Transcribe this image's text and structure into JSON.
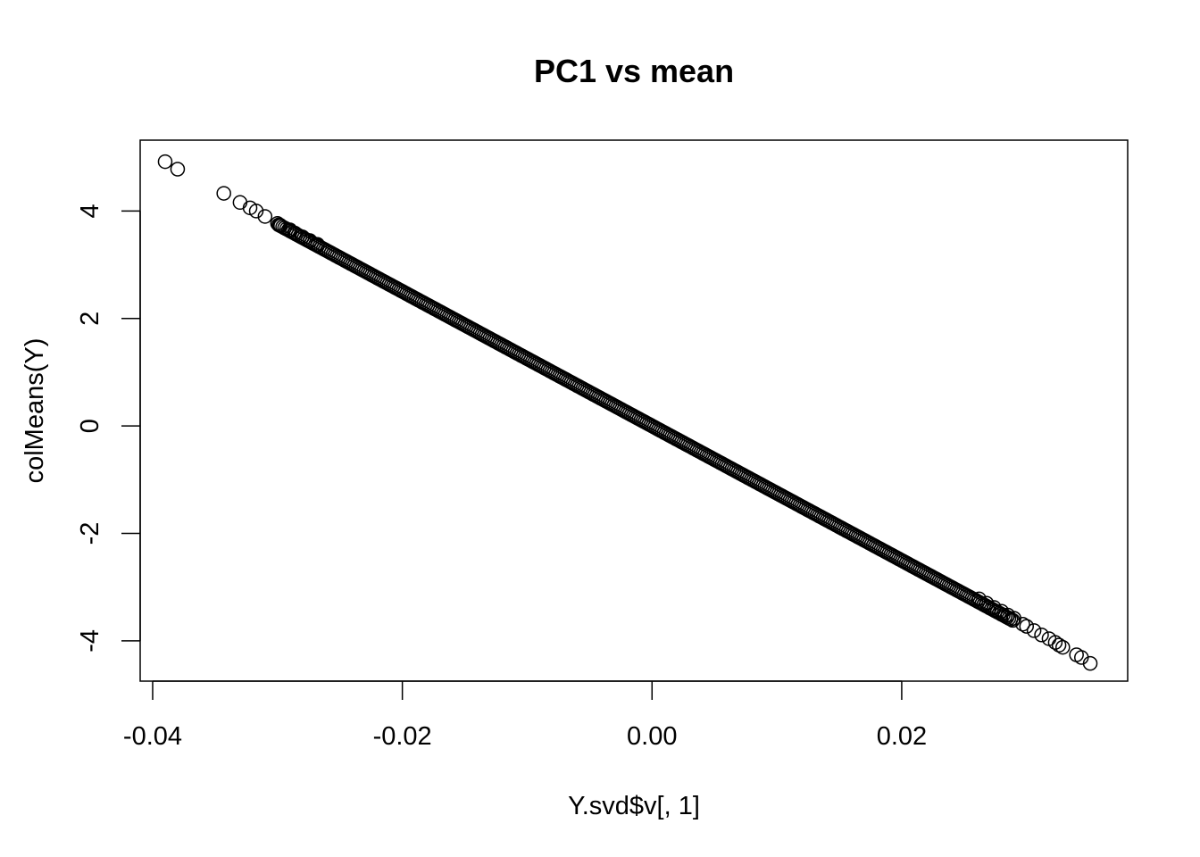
{
  "chart_data": {
    "type": "scatter",
    "title": "PC1 vs mean",
    "xlabel": "Y.svd$v[, 1]",
    "ylabel": "colMeans(Y)",
    "xlim": [
      -0.041,
      0.0381
    ],
    "ylim": [
      -4.75,
      5.32
    ],
    "xticks": [
      -0.04,
      -0.02,
      0.0,
      0.02
    ],
    "xtick_labels": [
      "-0.04",
      "-0.02",
      "0.00",
      "0.02"
    ],
    "yticks": [
      -4,
      -2,
      0,
      2,
      4
    ],
    "ytick_labels": [
      "-4",
      "-2",
      "0",
      "2",
      "4"
    ],
    "line_fit": {
      "slope": -125.2,
      "x_from": -0.0299,
      "x_to": 0.0289,
      "count": 380
    },
    "points": [
      {
        "x": -0.039,
        "y": 4.92
      },
      {
        "x": -0.038,
        "y": 4.78
      },
      {
        "x": -0.0343,
        "y": 4.33
      },
      {
        "x": -0.033,
        "y": 4.16
      },
      {
        "x": -0.0322,
        "y": 4.06
      },
      {
        "x": -0.0317,
        "y": 4.0
      },
      {
        "x": -0.031,
        "y": 3.9
      },
      {
        "x": -0.03,
        "y": 3.77
      },
      {
        "x": -0.0298,
        "y": 3.74
      },
      {
        "x": -0.029,
        "y": 3.65
      },
      {
        "x": -0.0286,
        "y": 3.59
      },
      {
        "x": -0.028,
        "y": 3.52
      },
      {
        "x": -0.0274,
        "y": 3.45
      },
      {
        "x": -0.0268,
        "y": 3.38
      },
      {
        "x": 0.0262,
        "y": -3.22
      },
      {
        "x": 0.0268,
        "y": -3.3
      },
      {
        "x": 0.0274,
        "y": -3.38
      },
      {
        "x": 0.028,
        "y": -3.45
      },
      {
        "x": 0.0285,
        "y": -3.52
      },
      {
        "x": 0.029,
        "y": -3.58
      },
      {
        "x": 0.0297,
        "y": -3.69
      },
      {
        "x": 0.03,
        "y": -3.73
      },
      {
        "x": 0.0306,
        "y": -3.81
      },
      {
        "x": 0.0312,
        "y": -3.89
      },
      {
        "x": 0.0318,
        "y": -3.96
      },
      {
        "x": 0.0323,
        "y": -4.03
      },
      {
        "x": 0.0326,
        "y": -4.08
      },
      {
        "x": 0.0329,
        "y": -4.12
      },
      {
        "x": 0.034,
        "y": -4.26
      },
      {
        "x": 0.0344,
        "y": -4.31
      },
      {
        "x": 0.0351,
        "y": -4.42
      }
    ]
  }
}
